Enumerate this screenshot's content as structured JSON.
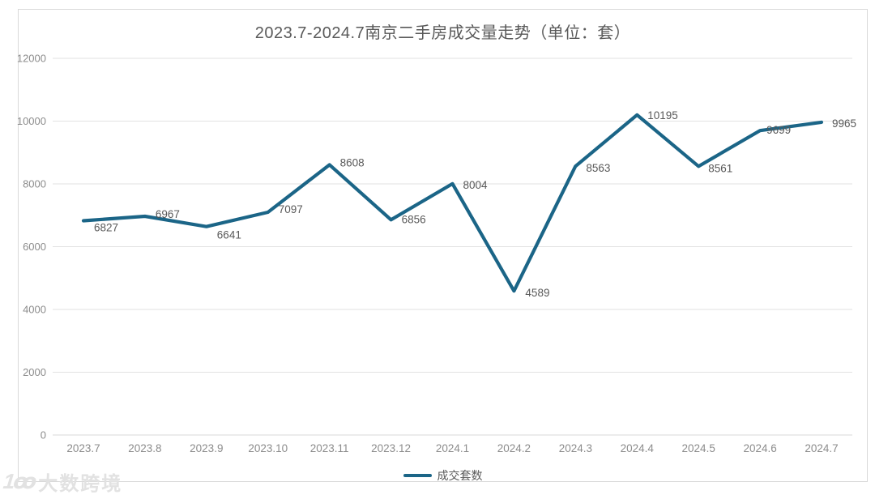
{
  "title": "2023.7-2024.7南京二手房成交量走势（单位：套）",
  "legend": {
    "label": "成交套数"
  },
  "watermark": {
    "logo": "1ꝏ",
    "text": "大数跨境"
  },
  "colors": {
    "line": "#1b6587",
    "grid": "#e2e2e2",
    "axis_line": "#d9d9d9",
    "axis_label": "#8c8c8c",
    "data_label": "#595959",
    "title": "#595959"
  },
  "chart_data": {
    "type": "line",
    "title": "2023.7-2024.7南京二手房成交量走势（单位：套）",
    "categories": [
      "2023.7",
      "2023.8",
      "2023.9",
      "2023.10",
      "2023.11",
      "2023.12",
      "2024.1",
      "2024.2",
      "2024.3",
      "2024.4",
      "2024.5",
      "2024.6",
      "2024.7"
    ],
    "series": [
      {
        "name": "成交套数",
        "values": [
          6827,
          6967,
          6641,
          7097,
          8608,
          6856,
          8004,
          4589,
          8563,
          10195,
          8561,
          9699,
          9965
        ]
      }
    ],
    "xlabel": "",
    "ylabel": "",
    "ylim": [
      0,
      12000
    ],
    "yticks": [
      0,
      2000,
      4000,
      6000,
      8000,
      10000,
      12000
    ],
    "grid": true,
    "legend_position": "bottom"
  }
}
